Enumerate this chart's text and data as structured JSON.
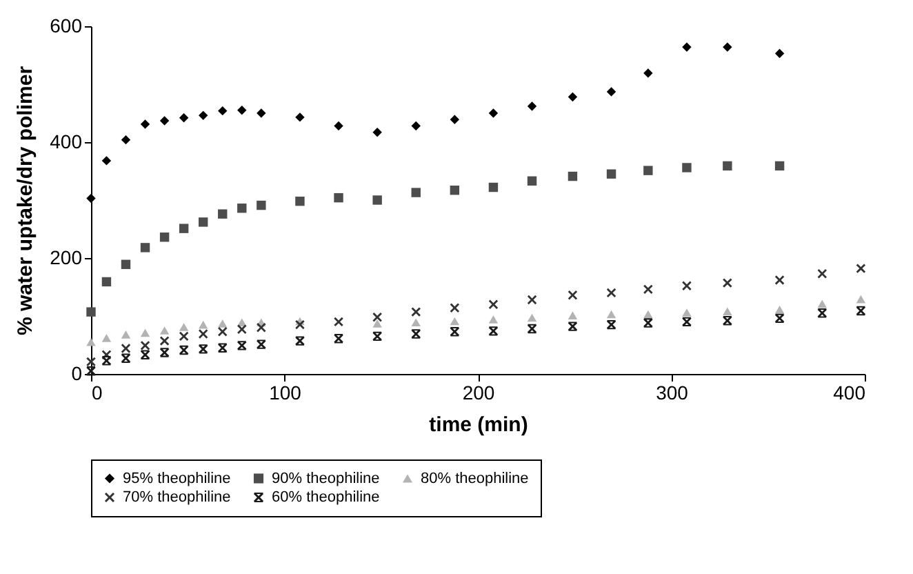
{
  "chart_data": {
    "type": "scatter",
    "xlabel": "time (min)",
    "ylabel": "% water uptake/dry polimer",
    "xlim": [
      0,
      400
    ],
    "xticks": [
      0,
      100,
      200,
      300,
      400
    ],
    "ylim": [
      0,
      600
    ],
    "yticks": [
      0,
      200,
      400,
      600
    ],
    "grid": false,
    "legend": "bottom",
    "x": [
      0,
      8,
      18,
      28,
      38,
      48,
      58,
      68,
      78,
      88,
      108,
      128,
      148,
      168,
      188,
      208,
      228,
      249,
      269,
      288,
      308,
      329,
      356,
      378,
      398
    ],
    "series": [
      {
        "name": "95% theophiline",
        "color": "#000000",
        "marker": "diamond",
        "values": [
          303,
          368,
          404,
          431,
          437,
          442,
          446,
          454,
          455,
          450,
          443,
          428,
          417,
          428,
          439,
          450,
          462,
          478,
          487,
          519,
          564,
          564,
          553,
          null,
          null
        ]
      },
      {
        "name": "90% theophiline",
        "color": "#4d4d4d",
        "marker": "square",
        "values": [
          107,
          159,
          189,
          218,
          236,
          251,
          262,
          276,
          286,
          291,
          298,
          304,
          300,
          313,
          317,
          322,
          333,
          341,
          345,
          351,
          356,
          359,
          359,
          null,
          null
        ]
      },
      {
        "name": "80% theophiline",
        "color": "#b3b3b3",
        "marker": "triangle",
        "values": [
          55,
          62,
          68,
          71,
          75,
          81,
          85,
          87,
          89,
          89,
          91,
          null,
          87,
          89,
          91,
          94,
          97,
          101,
          103,
          103,
          106,
          108,
          111,
          121,
          129
        ]
      },
      {
        "name": "70% theophiline",
        "color": "#333333",
        "marker": "cross",
        "values": [
          21,
          33,
          44,
          49,
          57,
          65,
          69,
          73,
          77,
          80,
          85,
          90,
          98,
          107,
          114,
          120,
          128,
          136,
          140,
          146,
          152,
          157,
          162,
          173,
          182
        ]
      },
      {
        "name": "60% theophiline",
        "color": "#1a1a1a",
        "marker": "star",
        "values": [
          5,
          23,
          27,
          33,
          37,
          41,
          43,
          45,
          49,
          51,
          57,
          61,
          65,
          69,
          73,
          74,
          78,
          82,
          85,
          88,
          90,
          92,
          96,
          105,
          109
        ]
      }
    ]
  }
}
